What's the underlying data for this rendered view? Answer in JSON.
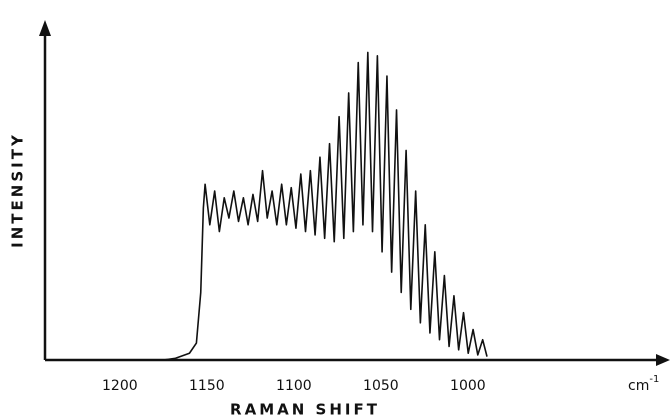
{
  "chart_data": {
    "type": "line",
    "xlabel": "RAMAN SHIFT",
    "ylabel": "INTENSITY",
    "x_unit": {
      "base": "cm",
      "exponent": "-1"
    },
    "xlim": [
      1243,
      885
    ],
    "ylim": [
      0,
      100
    ],
    "xticks": [
      1200,
      1150,
      1100,
      1050,
      1000
    ],
    "grid": false,
    "series": [
      {
        "color": "#111111",
        "x": [
          1243,
          1200,
          1175,
          1168,
          1160,
          1156,
          1153.5,
          1152,
          1151,
          1148.3,
          1145.5,
          1142.8,
          1140,
          1137.3,
          1134.5,
          1131.8,
          1129,
          1126.3,
          1123.5,
          1120.8,
          1118,
          1115.3,
          1112.5,
          1109.8,
          1107,
          1104.3,
          1101.5,
          1098.8,
          1096,
          1093.3,
          1090.5,
          1087.8,
          1085,
          1082.3,
          1079.5,
          1076.8,
          1074,
          1071.3,
          1068.5,
          1065.8,
          1063,
          1060.3,
          1057.5,
          1054.8,
          1052,
          1049.3,
          1046.5,
          1043.8,
          1041,
          1038.3,
          1035.5,
          1032.8,
          1030,
          1027.3,
          1024.5,
          1021.8,
          1019,
          1016.3,
          1013.5,
          1010.8,
          1008,
          1005.3,
          1002.5,
          999.8,
          997,
          994.3,
          991.5,
          989
        ],
        "values": [
          0,
          0,
          0,
          0.5,
          2,
          5,
          20,
          45,
          52,
          40,
          50,
          38,
          48,
          42,
          50,
          41,
          48,
          40,
          49,
          41,
          56,
          42,
          50,
          40,
          52,
          40,
          51,
          39,
          55,
          38,
          56,
          37,
          60,
          36,
          64,
          35,
          72,
          36,
          79,
          38,
          88,
          40,
          91,
          38,
          90,
          32,
          84,
          26,
          74,
          20,
          62,
          15,
          50,
          11,
          40,
          8,
          32,
          6,
          25,
          4,
          19,
          3,
          14,
          2,
          9,
          1.5,
          6,
          1
        ]
      }
    ]
  }
}
